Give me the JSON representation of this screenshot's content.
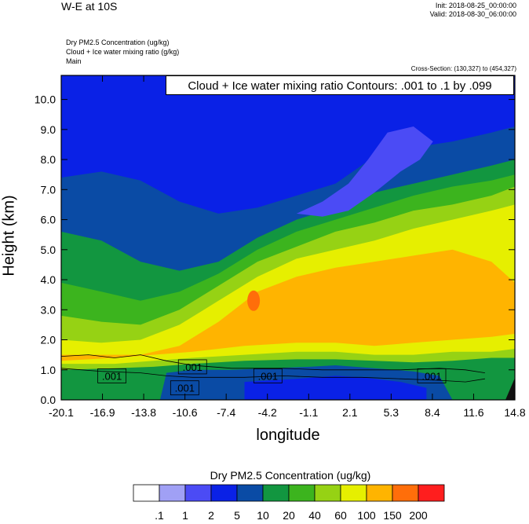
{
  "header": {
    "title": "W-E at 10S",
    "init": "Init: 2018-08-25_00:00:00",
    "valid": "Valid: 2018-08-30_06:00:00",
    "field1": "Dry PM2.5 Concentration   (ug/kg)",
    "field2": "Cloud + Ice water mixing ratio   (g/kg)",
    "field3": "Main",
    "cross_section": "Cross-Section: (130,327) to (454,327)",
    "contour_info": "Cloud + Ice water mixing ratio Contours: .001 to .1 by .099"
  },
  "chart_data": {
    "type": "heatmap",
    "xlabel": "longitude",
    "ylabel": "Height (km)",
    "xlim": [
      -20.1,
      14.8
    ],
    "ylim": [
      0.0,
      10.8
    ],
    "x_ticks": [
      "-20.1",
      "-16.9",
      "-13.8",
      "-10.6",
      "-7.4",
      "-4.2",
      "-1.1",
      "2.1",
      "5.3",
      "8.4",
      "11.6",
      "14.8"
    ],
    "y_ticks": [
      "0.0",
      "1.0",
      "2.0",
      "3.0",
      "4.0",
      "5.0",
      "6.0",
      "7.0",
      "8.0",
      "9.0",
      "10.0"
    ],
    "contour_labels": [
      ".001",
      ".001",
      ".001",
      ".001",
      ".001"
    ],
    "colorbar": {
      "title": "Dry PM2.5 Concentration  (ug/kg)",
      "levels": [
        ".1",
        "1",
        "2",
        "5",
        "10",
        "20",
        "40",
        "60",
        "100",
        "150",
        "200"
      ],
      "colors": [
        "#ffffff",
        "#a0a0f5",
        "#4b4bf5",
        "#0a21e6",
        "#0a4ba5",
        "#129640",
        "#3cb41e",
        "#96d214",
        "#e6ef00",
        "#ffb400",
        "#ff6e0a",
        "#ff1e1e"
      ]
    }
  }
}
